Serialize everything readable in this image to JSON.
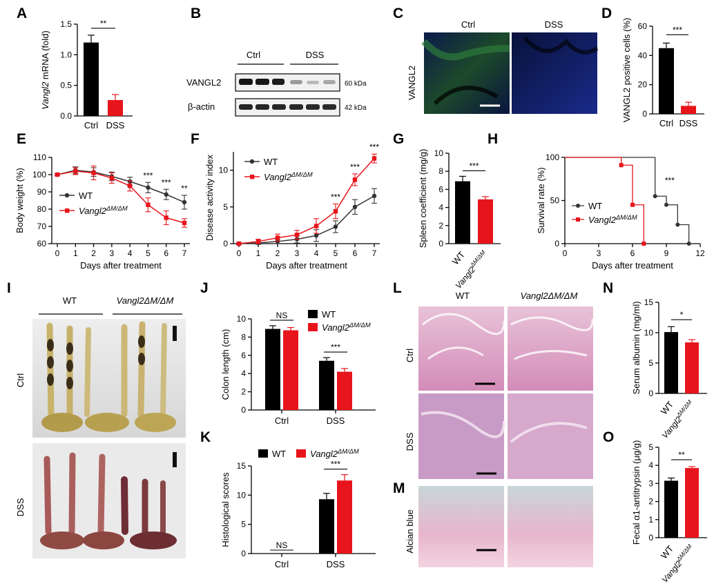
{
  "colors": {
    "wt": "#000000",
    "ko": "#e8141b",
    "wt_line": "#333333",
    "blot_band": "#1a1a1a"
  },
  "panels": {
    "A": {
      "letter": "A",
      "ylabel": "Vangl2 mRNA (fold)"
    },
    "B": {
      "letter": "B",
      "groups": [
        "Ctrl",
        "DSS"
      ],
      "rows": [
        "VANGL2",
        "β-actin"
      ],
      "sizes": [
        "60 kDa",
        "42 kDa"
      ]
    },
    "C": {
      "letter": "C",
      "cols": [
        "Ctrl",
        "DSS"
      ],
      "row": "VANGL2"
    },
    "D": {
      "letter": "D"
    },
    "E": {
      "letter": "E"
    },
    "F": {
      "letter": "F"
    },
    "G": {
      "letter": "G"
    },
    "H": {
      "letter": "H"
    },
    "I": {
      "letter": "I",
      "cols": [
        "WT",
        "Vangl2ΔM/ΔM"
      ],
      "rows": [
        "Ctrl",
        "DSS"
      ]
    },
    "J": {
      "letter": "J"
    },
    "K": {
      "letter": "K"
    },
    "L": {
      "letter": "L",
      "cols": [
        "WT",
        "Vangl2ΔM/ΔM"
      ],
      "rows": [
        "Ctrl",
        "DSS"
      ]
    },
    "M": {
      "letter": "M",
      "row": "Alcian blue"
    },
    "N": {
      "letter": "N"
    },
    "O": {
      "letter": "O"
    }
  },
  "chart_data": [
    {
      "panel": "A",
      "type": "bar",
      "categories": [
        "Ctrl",
        "DSS"
      ],
      "values": [
        1.2,
        0.26
      ],
      "errors": [
        0.12,
        0.09
      ],
      "ylabel": "Vangl2 mRNA (fold)",
      "ylim": [
        0,
        1.5
      ],
      "yticks": [
        "0.0",
        "0.5",
        "1.0",
        "1.5"
      ],
      "significance": [
        "**"
      ]
    },
    {
      "panel": "D",
      "type": "bar",
      "categories": [
        "Ctrl",
        "DSS"
      ],
      "values": [
        45,
        5.5
      ],
      "errors": [
        3.5,
        2.5
      ],
      "ylabel": "VANGL2 positive cells (%)",
      "ylim": [
        0,
        60
      ],
      "yticks": [
        "0",
        "20",
        "40",
        "60"
      ],
      "significance": [
        "***"
      ]
    },
    {
      "panel": "E",
      "type": "line",
      "x": [
        0,
        1,
        2,
        3,
        4,
        5,
        6,
        7
      ],
      "xlabel": "Days after treatment",
      "ylabel": "Body weight (%)",
      "ylim": [
        60,
        110
      ],
      "yticks": [
        "60",
        "70",
        "80",
        "90",
        "100",
        "110"
      ],
      "series": [
        {
          "name": "WT",
          "values": [
            100,
            102.5,
            101.5,
            99,
            96,
            92.5,
            88.5,
            84
          ],
          "errors": [
            0.5,
            2,
            2.5,
            2.5,
            2.5,
            3,
            3,
            4
          ]
        },
        {
          "name": "Vangl2ΔM/ΔM",
          "values": [
            100,
            102,
            101,
            98,
            93.5,
            82.5,
            75,
            72
          ],
          "errors": [
            0.5,
            2,
            4,
            3,
            3,
            4,
            4,
            2.5
          ]
        }
      ],
      "significance": [
        "***",
        "***",
        "**"
      ]
    },
    {
      "panel": "F",
      "type": "line",
      "x": [
        0,
        1,
        2,
        3,
        4,
        5,
        6,
        7
      ],
      "xlabel": "Days after treatment",
      "ylabel": "Disease activity index",
      "ylim": [
        0,
        12.5
      ],
      "yticks": [
        "0",
        "5",
        "10"
      ],
      "series": [
        {
          "name": "WT",
          "values": [
            0,
            0.1,
            0.3,
            0.6,
            1.1,
            2.3,
            5.0,
            6.5
          ],
          "errors": [
            0.1,
            0.2,
            0.3,
            0.5,
            0.8,
            0.8,
            1.0,
            1.0
          ]
        },
        {
          "name": "Vangl2ΔM/ΔM",
          "values": [
            0,
            0.3,
            0.8,
            1.2,
            2.4,
            4.4,
            8.7,
            11.6
          ],
          "errors": [
            0.1,
            0.3,
            0.5,
            0.6,
            1.0,
            1.0,
            0.8,
            0.6
          ]
        }
      ],
      "significance": [
        "***",
        "***",
        "***"
      ]
    },
    {
      "panel": "G",
      "type": "bar",
      "categories": [
        "WT",
        "Vangl2ΔM/ΔM"
      ],
      "values": [
        6.9,
        4.9
      ],
      "errors": [
        0.55,
        0.3
      ],
      "ylabel": "Spleen coefficient (mg/g)",
      "ylim": [
        0,
        10
      ],
      "yticks": [
        "0",
        "2",
        "4",
        "6",
        "8",
        "10"
      ],
      "significance": [
        "***"
      ]
    },
    {
      "panel": "H",
      "type": "line",
      "x": [
        0,
        3,
        6,
        9,
        12
      ],
      "xlabel": "Days after treatment",
      "ylabel": "Survival rate (%)",
      "ylim": [
        0,
        100
      ],
      "xlim": [
        0,
        12
      ],
      "yticks": [
        "0",
        "50",
        "100"
      ],
      "xticks": [
        "0",
        "3",
        "6",
        "9",
        "12"
      ],
      "series": [
        {
          "name": "WT",
          "steps": [
            [
              0,
              100
            ],
            [
              8,
              100
            ],
            [
              8,
              55
            ],
            [
              9,
              55
            ],
            [
              9,
              45
            ],
            [
              10,
              45
            ],
            [
              10,
              22
            ],
            [
              11,
              22
            ],
            [
              11,
              0
            ]
          ],
          "points": [
            [
              8,
              55
            ],
            [
              9,
              45
            ],
            [
              10,
              22
            ],
            [
              11,
              0
            ]
          ]
        },
        {
          "name": "Vangl2ΔM/ΔM",
          "steps": [
            [
              0,
              100
            ],
            [
              5,
              100
            ],
            [
              5,
              91
            ],
            [
              6,
              91
            ],
            [
              6,
              45
            ],
            [
              7,
              45
            ],
            [
              7,
              0
            ]
          ],
          "points": [
            [
              5,
              91
            ],
            [
              6,
              45
            ],
            [
              7,
              0
            ]
          ]
        }
      ],
      "significance": [
        "***"
      ]
    },
    {
      "panel": "J",
      "type": "bar",
      "categories": [
        "Ctrl",
        "DSS"
      ],
      "ylabel": "Colon length (cm)",
      "ylim": [
        0,
        10
      ],
      "yticks": [
        "0",
        "2",
        "4",
        "6",
        "8",
        "10"
      ],
      "series": [
        {
          "name": "WT",
          "values": [
            8.9,
            5.4
          ],
          "errors": [
            0.35,
            0.35
          ]
        },
        {
          "name": "Vangl2ΔM/ΔM",
          "values": [
            8.75,
            4.2
          ],
          "errors": [
            0.3,
            0.35
          ]
        }
      ],
      "significance": [
        "NS",
        "***"
      ]
    },
    {
      "panel": "K",
      "type": "bar",
      "categories": [
        "Ctrl",
        "DSS"
      ],
      "ylabel": "Histological scores",
      "ylim": [
        0,
        15
      ],
      "yticks": [
        "0",
        "5",
        "10",
        "15"
      ],
      "series": [
        {
          "name": "WT",
          "values": [
            0,
            9.3
          ],
          "errors": [
            0,
            1.0
          ]
        },
        {
          "name": "Vangl2ΔM/ΔM",
          "values": [
            0,
            12.5
          ],
          "errors": [
            0,
            1.0
          ]
        }
      ],
      "significance": [
        "NS",
        "***"
      ]
    },
    {
      "panel": "N",
      "type": "bar",
      "categories": [
        "WT",
        "Vangl2ΔM/ΔM"
      ],
      "values": [
        10.1,
        8.4
      ],
      "errors": [
        0.9,
        0.45
      ],
      "ylabel": "Serum albumin (mg/ml)",
      "ylim": [
        0,
        15
      ],
      "yticks": [
        "0",
        "5",
        "10",
        "15"
      ],
      "significance": [
        "*"
      ]
    },
    {
      "panel": "O",
      "type": "bar",
      "categories": [
        "WT",
        "Vangl2ΔM/ΔM"
      ],
      "values": [
        3.15,
        3.85
      ],
      "errors": [
        0.15,
        0.08
      ],
      "ylabel": "Fecal α1-antitrypsin (μg/g)",
      "ylim": [
        0,
        5
      ],
      "yticks": [
        "0",
        "1",
        "2",
        "3",
        "4",
        "5"
      ],
      "significance": [
        "**"
      ]
    }
  ]
}
